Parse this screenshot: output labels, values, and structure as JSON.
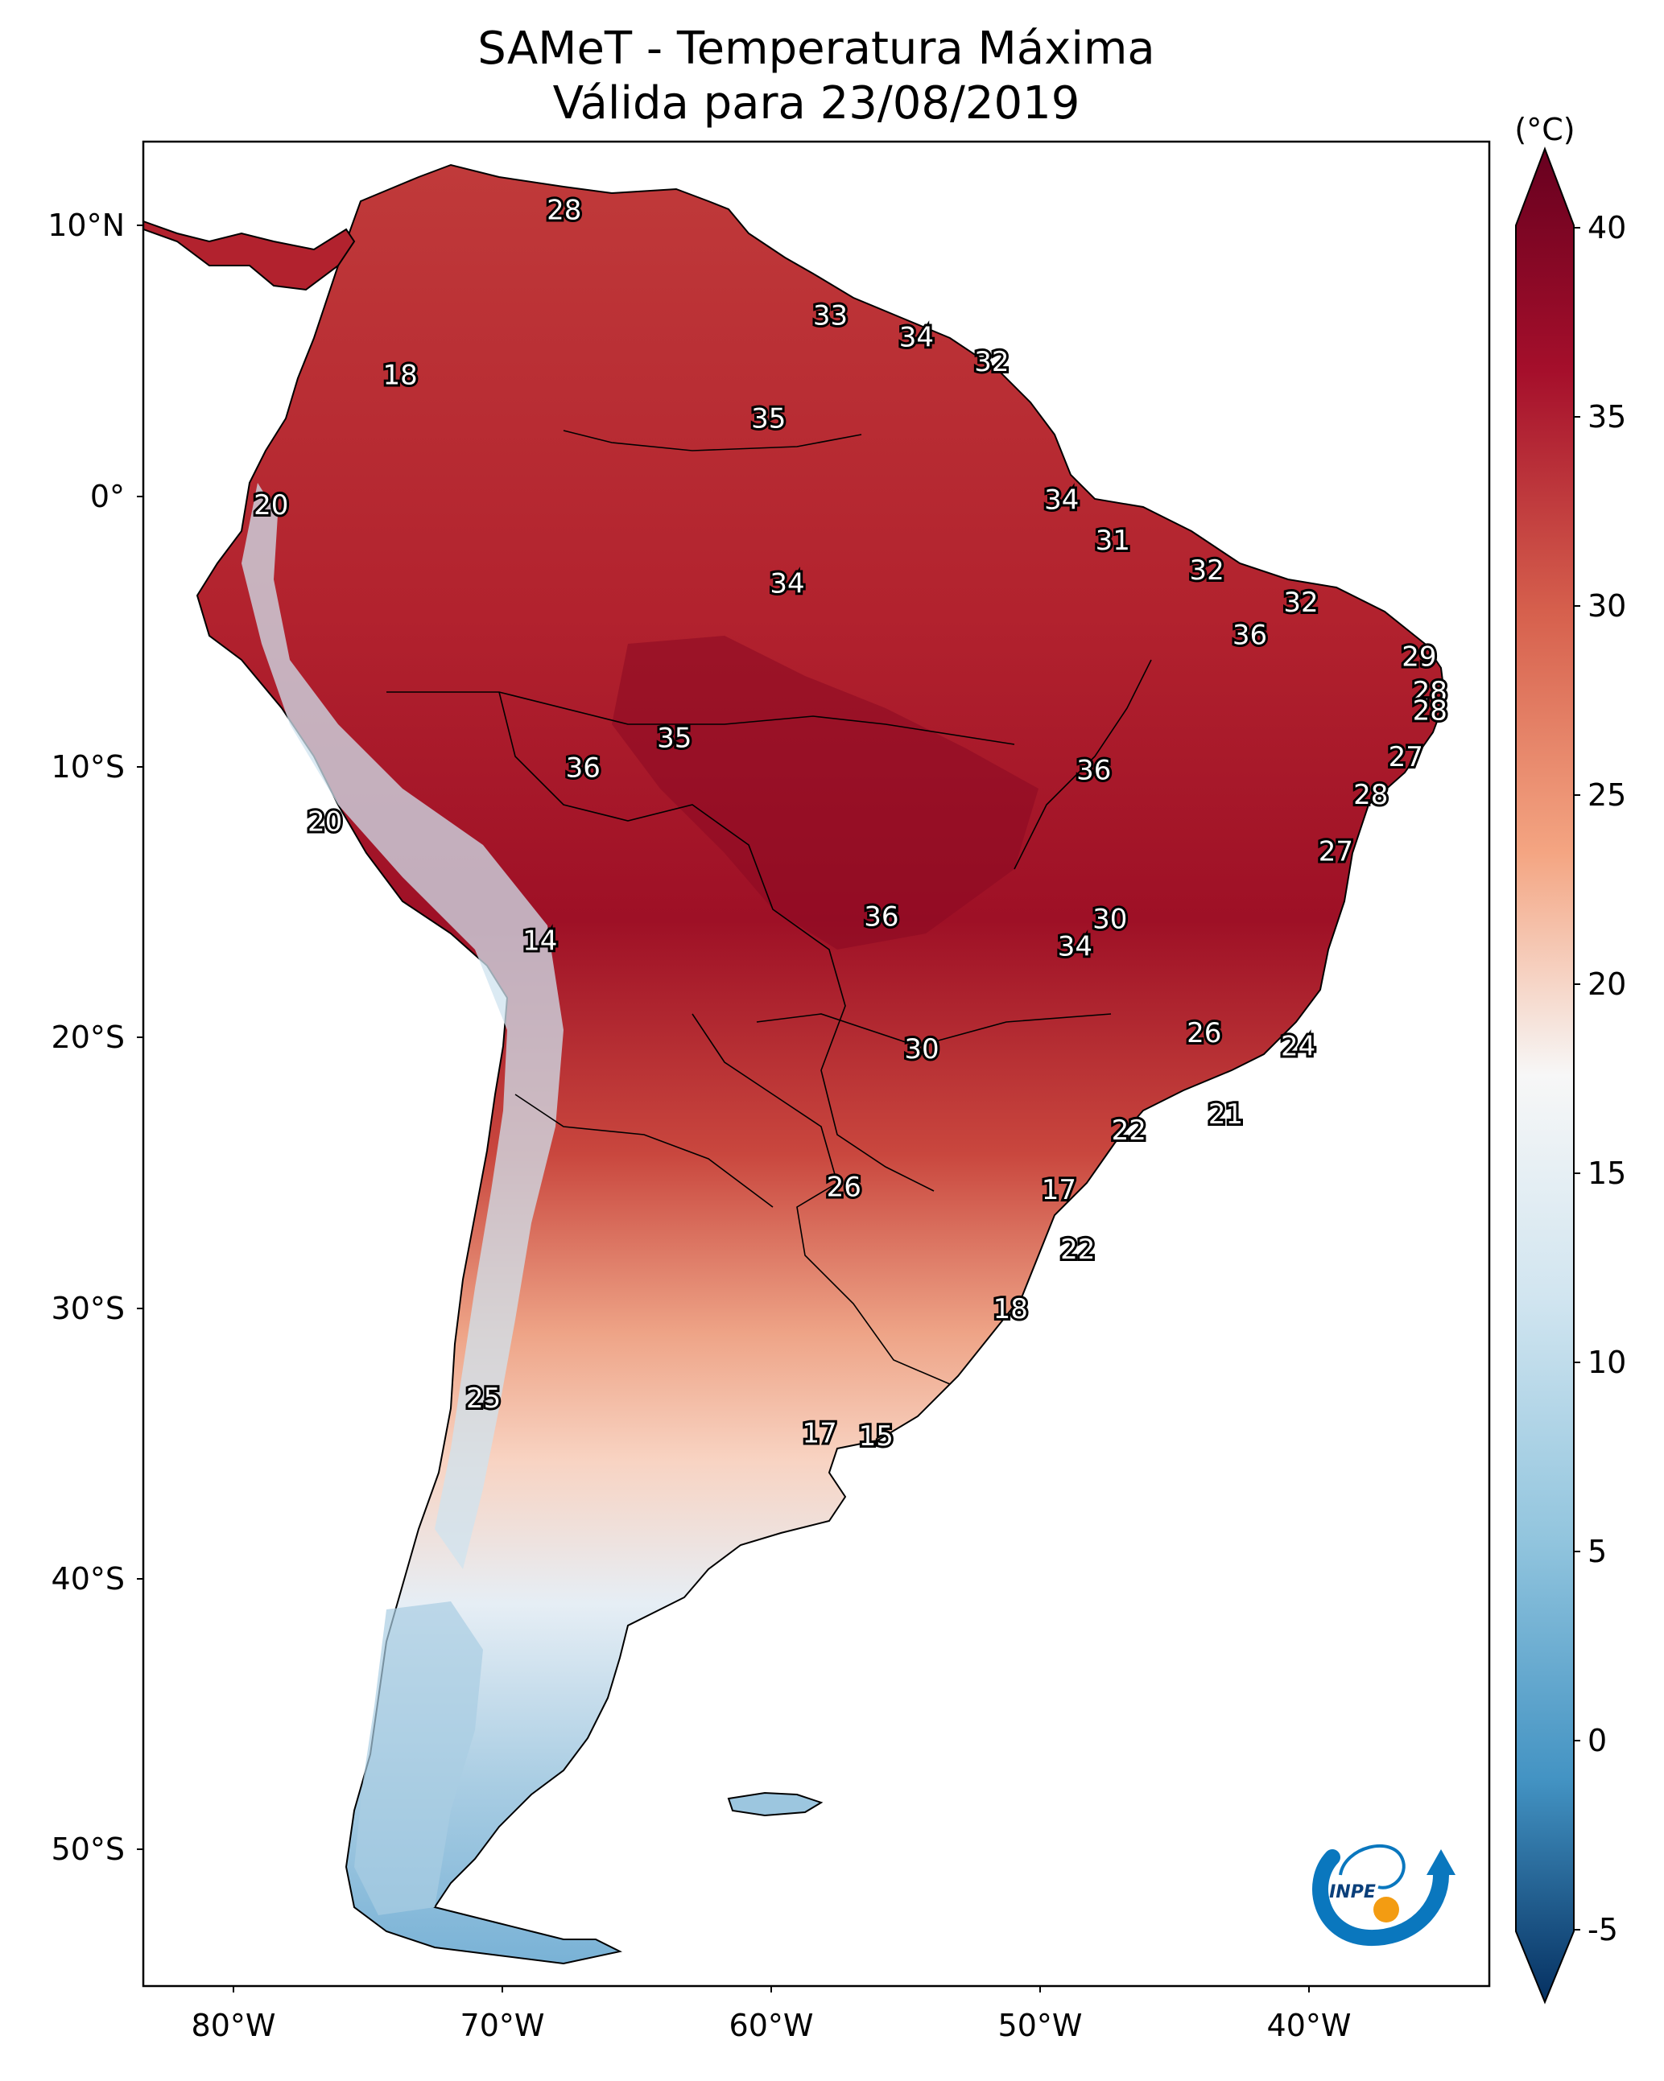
{
  "title_line1": "SAMeT - Temperatura Máxima",
  "title_line2": "Válida para 23/08/2019",
  "colorbar": {
    "unit": "(°C)",
    "ticks": [
      "40",
      "35",
      "30",
      "25",
      "20",
      "15",
      "10",
      "5",
      "0",
      "-5"
    ],
    "colors": {
      "hot": "#67001f",
      "warm": "#d6604d",
      "mild": "#f7f7f7",
      "cool": "#92c5de",
      "cold": "#053061"
    }
  },
  "axes": {
    "lat_labels": [
      "10°N",
      "0°",
      "10°S",
      "20°S",
      "30°S",
      "40°S",
      "50°S"
    ],
    "lon_labels": [
      "80°W",
      "70°W",
      "60°W",
      "50°W",
      "40°W"
    ]
  },
  "isotherm_labels": [
    {
      "text": "28",
      "lon": -67.7,
      "lat": 10.6
    },
    {
      "text": "18",
      "lon": -73.8,
      "lat": 4.5
    },
    {
      "text": "33",
      "lon": -57.8,
      "lat": 6.7
    },
    {
      "text": "34",
      "lon": -54.6,
      "lat": 5.9
    },
    {
      "text": "32",
      "lon": -51.8,
      "lat": 5.0
    },
    {
      "text": "35",
      "lon": -60.1,
      "lat": 2.9
    },
    {
      "text": "20",
      "lon": -78.6,
      "lat": -0.3
    },
    {
      "text": "34",
      "lon": -49.2,
      "lat": -0.1
    },
    {
      "text": "31",
      "lon": -47.3,
      "lat": -1.6
    },
    {
      "text": "34",
      "lon": -59.4,
      "lat": -3.2
    },
    {
      "text": "32",
      "lon": -43.8,
      "lat": -2.7
    },
    {
      "text": "32",
      "lon": -40.3,
      "lat": -3.9
    },
    {
      "text": "36",
      "lon": -42.2,
      "lat": -5.1
    },
    {
      "text": "29",
      "lon": -35.9,
      "lat": -5.9
    },
    {
      "text": "28",
      "lon": -35.5,
      "lat": -7.2
    },
    {
      "text": "28",
      "lon": -35.5,
      "lat": -7.9
    },
    {
      "text": "35",
      "lon": -63.6,
      "lat": -8.9
    },
    {
      "text": "36",
      "lon": -67.0,
      "lat": -10.0
    },
    {
      "text": "36",
      "lon": -48.0,
      "lat": -10.1
    },
    {
      "text": "27",
      "lon": -36.4,
      "lat": -9.6
    },
    {
      "text": "28",
      "lon": -37.7,
      "lat": -11.0
    },
    {
      "text": "20",
      "lon": -76.6,
      "lat": -12.0
    },
    {
      "text": "27",
      "lon": -39.0,
      "lat": -13.1
    },
    {
      "text": "14",
      "lon": -68.6,
      "lat": -16.4
    },
    {
      "text": "36",
      "lon": -55.9,
      "lat": -15.5
    },
    {
      "text": "30",
      "lon": -47.4,
      "lat": -15.6
    },
    {
      "text": "34",
      "lon": -48.7,
      "lat": -16.6
    },
    {
      "text": "26",
      "lon": -43.9,
      "lat": -19.8
    },
    {
      "text": "24",
      "lon": -40.4,
      "lat": -20.3
    },
    {
      "text": "30",
      "lon": -54.4,
      "lat": -20.4
    },
    {
      "text": "21",
      "lon": -43.1,
      "lat": -22.8
    },
    {
      "text": "22",
      "lon": -46.7,
      "lat": -23.4
    },
    {
      "text": "26",
      "lon": -57.3,
      "lat": -25.5
    },
    {
      "text": "17",
      "lon": -49.3,
      "lat": -25.6
    },
    {
      "text": "22",
      "lon": -48.6,
      "lat": -27.8
    },
    {
      "text": "18",
      "lon": -51.1,
      "lat": -30.0
    },
    {
      "text": "25",
      "lon": -70.7,
      "lat": -33.3
    },
    {
      "text": "17",
      "lon": -58.2,
      "lat": -34.6
    },
    {
      "text": "15",
      "lon": -56.1,
      "lat": -34.7
    }
  ],
  "logo": {
    "text": "INPE"
  }
}
